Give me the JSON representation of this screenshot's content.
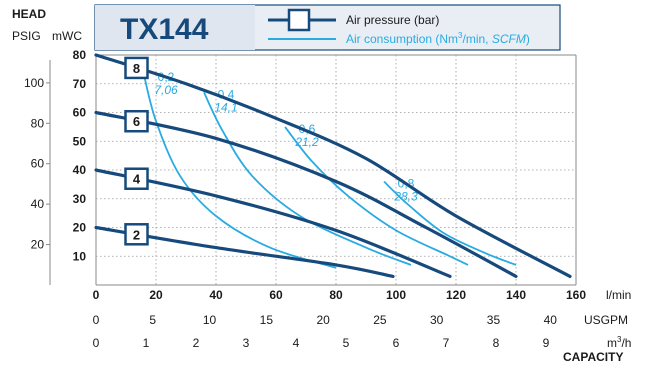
{
  "header": {
    "head_label": "HEAD",
    "psig_label": "PSIG",
    "mwc_label": "mWC",
    "model": "TX144",
    "legend_pressure": "Air pressure (bar)",
    "legend_consumption_prefix": "Air consumption (Nm",
    "legend_consumption_sup": "3",
    "legend_consumption_mid": "/min, ",
    "legend_consumption_italic": "SCFM",
    "legend_consumption_suffix": ")"
  },
  "axes": {
    "lmin_unit": "l/min",
    "usgpm_unit": "USGPM",
    "m3h_unit_prefix": "m",
    "m3h_unit_sup": "3",
    "m3h_unit_suffix": "/h",
    "capacity_label": "CAPACITY"
  },
  "colors": {
    "pressure_line": "#174a7c",
    "consumption_line": "#29abe2",
    "grid": "#8a8a8a",
    "header_bg": "#e9eef5"
  },
  "chart_data": {
    "type": "line",
    "x_unit": "l/min",
    "y_unit": "mWC",
    "xlim": [
      0,
      160
    ],
    "ylim": [
      0,
      80
    ],
    "x_ticks": [
      "0",
      "20",
      "40",
      "60",
      "80",
      "100",
      "120",
      "140",
      "160"
    ],
    "y_ticks_mwc": [
      "10",
      "20",
      "30",
      "40",
      "50",
      "60",
      "70",
      "80"
    ],
    "y_ticks_psig": [
      "20",
      "40",
      "60",
      "80",
      "100"
    ],
    "usgpm_ticks": [
      "0",
      "5",
      "10",
      "15",
      "20",
      "25",
      "30",
      "35",
      "40"
    ],
    "m3h_ticks": [
      "0",
      "1",
      "2",
      "3",
      "4",
      "5",
      "6",
      "7",
      "8",
      "9"
    ],
    "pressure_series": [
      {
        "label": "8",
        "points": [
          [
            0,
            80
          ],
          [
            30,
            70
          ],
          [
            60,
            58
          ],
          [
            90,
            44
          ],
          [
            120,
            24
          ],
          [
            158,
            3
          ]
        ]
      },
      {
        "label": "6",
        "points": [
          [
            0,
            60
          ],
          [
            40,
            51
          ],
          [
            80,
            36
          ],
          [
            110,
            20
          ],
          [
            140,
            3
          ]
        ]
      },
      {
        "label": "4",
        "points": [
          [
            0,
            40
          ],
          [
            40,
            31
          ],
          [
            80,
            19
          ],
          [
            118,
            3
          ]
        ]
      },
      {
        "label": "2",
        "points": [
          [
            0,
            20
          ],
          [
            40,
            13
          ],
          [
            80,
            7
          ],
          [
            99,
            3
          ]
        ]
      }
    ],
    "consumption_series": [
      {
        "label_top": "0,2",
        "label_bottom": "7,06",
        "points": [
          [
            16,
            73
          ],
          [
            20,
            57
          ],
          [
            28,
            38
          ],
          [
            40,
            24
          ],
          [
            58,
            13
          ],
          [
            80,
            6
          ]
        ]
      },
      {
        "label_top": "0,4",
        "label_bottom": "14,1",
        "points": [
          [
            36,
            67
          ],
          [
            42,
            54
          ],
          [
            52,
            38
          ],
          [
            68,
            24
          ],
          [
            90,
            13
          ],
          [
            105,
            7
          ]
        ]
      },
      {
        "label_top": "0,6",
        "label_bottom": "21,2",
        "points": [
          [
            63,
            55
          ],
          [
            72,
            43
          ],
          [
            84,
            31
          ],
          [
            100,
            19
          ],
          [
            118,
            10
          ],
          [
            124,
            7
          ]
        ]
      },
      {
        "label_top": "0,8",
        "label_bottom": "28,3",
        "points": [
          [
            96,
            36
          ],
          [
            104,
            28
          ],
          [
            116,
            18
          ],
          [
            130,
            11
          ],
          [
            140,
            7
          ]
        ]
      }
    ]
  }
}
